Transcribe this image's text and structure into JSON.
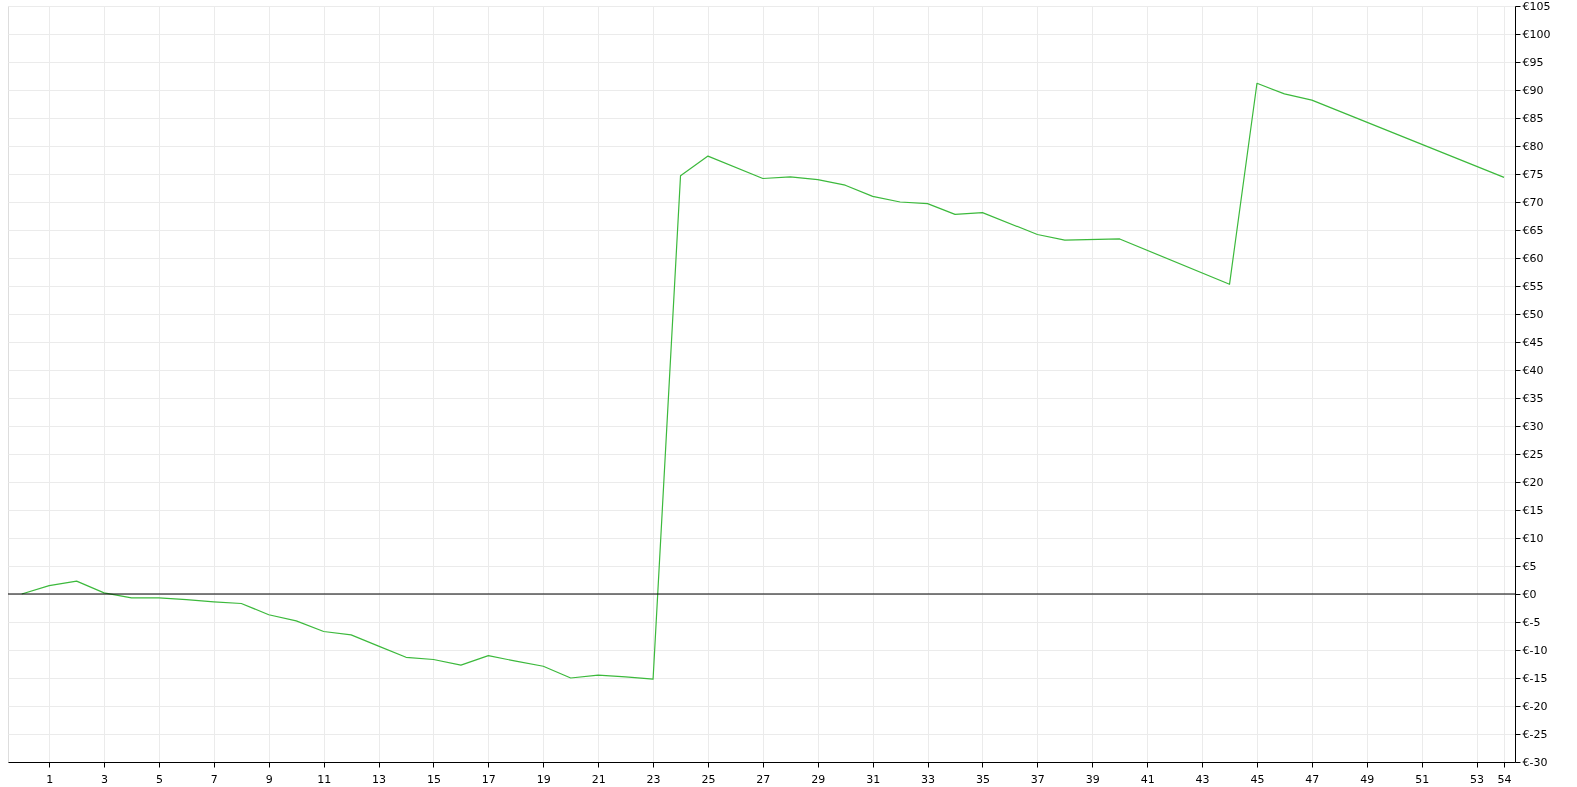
{
  "chart_data": {
    "type": "line",
    "x": [
      0,
      1,
      2,
      3,
      4,
      5,
      6,
      7,
      8,
      9,
      10,
      11,
      12,
      13,
      14,
      15,
      16,
      17,
      18,
      19,
      20,
      21,
      22,
      23,
      24,
      25,
      27,
      28,
      29,
      30,
      31,
      32,
      33,
      34,
      35,
      37,
      38,
      40,
      44,
      45,
      46,
      47,
      54
    ],
    "series": [
      {
        "color": "#3cb93c",
        "values": [
          0,
          1.5,
          2.3,
          0.2,
          -0.7,
          -0.7,
          -1.0,
          -1.4,
          -1.7,
          -3.7,
          -4.8,
          -6.7,
          -7.3,
          -9.3,
          -11.3,
          -11.7,
          -12.7,
          -11.0,
          -12.0,
          -12.9,
          -15.0,
          -14.5,
          -14.8,
          -15.2,
          74.7,
          78.2,
          74.2,
          74.5,
          74.0,
          73.0,
          71.0,
          70.0,
          69.7,
          67.8,
          68.1,
          64.2,
          63.2,
          63.4,
          55.3,
          91.2,
          89.3,
          88.2,
          74.4
        ]
      }
    ],
    "xlim": [
      -0.5,
      54.4
    ],
    "xticks": [
      1,
      3,
      5,
      7,
      9,
      11,
      13,
      15,
      17,
      19,
      21,
      23,
      25,
      27,
      29,
      31,
      33,
      35,
      37,
      39,
      41,
      43,
      45,
      47,
      49,
      51,
      53,
      54
    ],
    "ylim": [
      -30,
      105
    ],
    "yticks": [
      {
        "value": -30,
        "label": "€-30"
      },
      {
        "value": -25,
        "label": "€-25"
      },
      {
        "value": -20,
        "label": "€-20"
      },
      {
        "value": -15,
        "label": "€-15"
      },
      {
        "value": -10,
        "label": "€-10"
      },
      {
        "value": -5,
        "label": "€-5"
      },
      {
        "value": 0,
        "label": "€0"
      },
      {
        "value": 5,
        "label": "€5"
      },
      {
        "value": 10,
        "label": "€10"
      },
      {
        "value": 15,
        "label": "€15"
      },
      {
        "value": 20,
        "label": "€20"
      },
      {
        "value": 25,
        "label": "€25"
      },
      {
        "value": 30,
        "label": "€30"
      },
      {
        "value": 35,
        "label": "€35"
      },
      {
        "value": 40,
        "label": "€40"
      },
      {
        "value": 45,
        "label": "€45"
      },
      {
        "value": 50,
        "label": "€50"
      },
      {
        "value": 55,
        "label": "€55"
      },
      {
        "value": 60,
        "label": "€60"
      },
      {
        "value": 65,
        "label": "€65"
      },
      {
        "value": 70,
        "label": "€70"
      },
      {
        "value": 75,
        "label": "€75"
      },
      {
        "value": 80,
        "label": "€80"
      },
      {
        "value": 85,
        "label": "€85"
      },
      {
        "value": 90,
        "label": "€90"
      },
      {
        "value": 95,
        "label": "€95"
      },
      {
        "value": 100,
        "label": "€100"
      },
      {
        "value": 105,
        "label": "€105"
      }
    ],
    "ref_lines": [
      {
        "axis": "y",
        "value": 0,
        "color": "#000000"
      }
    ],
    "grid": true,
    "marker": "none",
    "line_style": "solid"
  }
}
